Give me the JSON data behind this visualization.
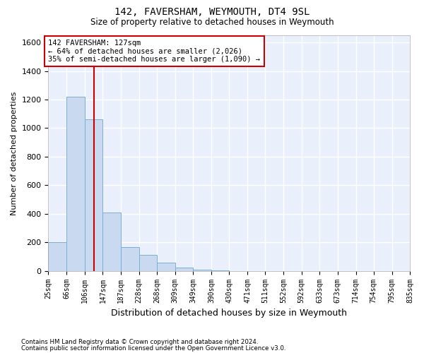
{
  "title": "142, FAVERSHAM, WEYMOUTH, DT4 9SL",
  "subtitle": "Size of property relative to detached houses in Weymouth",
  "xlabel": "Distribution of detached houses by size in Weymouth",
  "ylabel": "Number of detached properties",
  "bar_color": "#c9d9f0",
  "bar_edgecolor": "#7bafd4",
  "bg_color": "#eaf0fb",
  "grid_color": "#ffffff",
  "property_line_color": "#cc0000",
  "property_size": 127,
  "annotation_text": "142 FAVERSHAM: 127sqm\n← 64% of detached houses are smaller (2,026)\n35% of semi-detached houses are larger (1,090) →",
  "bins": [
    25,
    66,
    106,
    147,
    187,
    228,
    268,
    309,
    349,
    390,
    430,
    471,
    511,
    552,
    592,
    633,
    673,
    714,
    754,
    795,
    835
  ],
  "counts": [
    200,
    1220,
    1060,
    410,
    165,
    110,
    60,
    25,
    10,
    5,
    0,
    0,
    0,
    0,
    0,
    0,
    0,
    0,
    0,
    0
  ],
  "ylim": [
    0,
    1650
  ],
  "yticks": [
    0,
    200,
    400,
    600,
    800,
    1000,
    1200,
    1400,
    1600
  ],
  "footnote1": "Contains HM Land Registry data © Crown copyright and database right 2024.",
  "footnote2": "Contains public sector information licensed under the Open Government Licence v3.0."
}
